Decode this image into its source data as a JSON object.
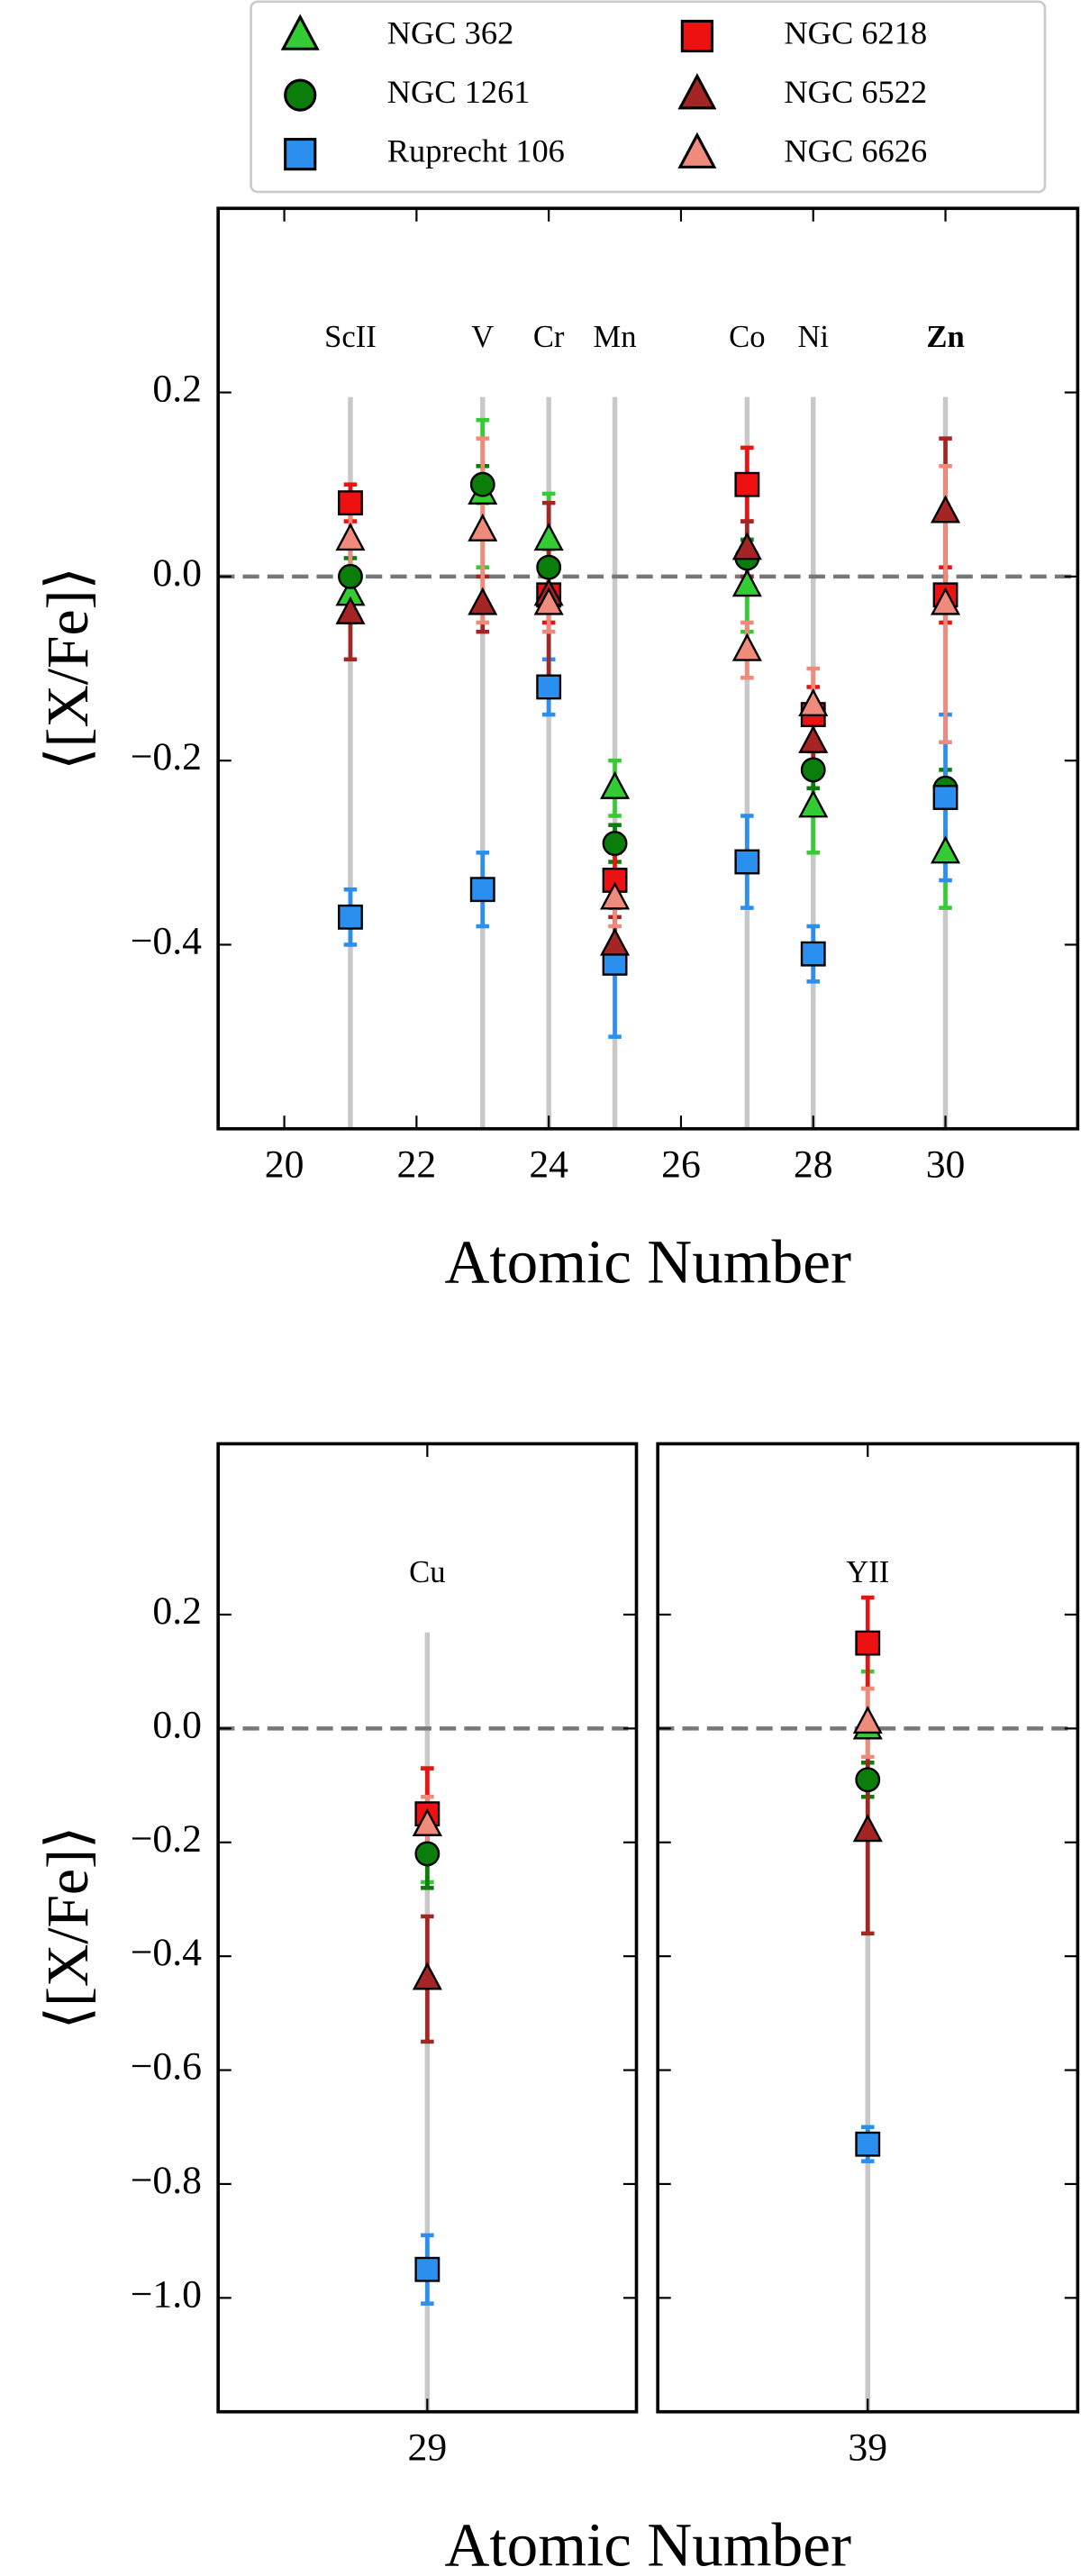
{
  "chart_data": [
    {
      "type": "scatter",
      "xlabel": "Atomic Number",
      "ylabel": "⟨[X/Fe]⟩",
      "xlim": [
        19,
        32
      ],
      "ylim": [
        -0.6,
        0.4
      ],
      "xticks": [
        20,
        22,
        24,
        26,
        28,
        30
      ],
      "yticks": [
        {
          "value": -0.4,
          "label": "−0.4"
        },
        {
          "value": -0.2,
          "label": "−0.2"
        },
        {
          "value": 0,
          "label": "0.0"
        },
        0.2
      ],
      "hline": 0,
      "annotations": [
        {
          "text": "ScII",
          "x": 21
        },
        {
          "text": "V",
          "x": 23
        },
        {
          "text": "Cr",
          "x": 24
        },
        {
          "text": "Mn",
          "x": 25
        },
        {
          "text": "Co",
          "x": 27
        },
        {
          "text": "Ni",
          "x": 28
        },
        {
          "text": "Zn",
          "x": 30,
          "bold": true
        }
      ],
      "x": [
        21,
        23,
        24,
        25,
        27,
        28,
        30
      ],
      "series": [
        {
          "name": "NGC 362",
          "color": "#33cc33",
          "marker": "triangle",
          "values": [
            -0.02,
            0.09,
            0.04,
            -0.23,
            -0.01,
            -0.25,
            -0.3
          ],
          "errors": [
            0.03,
            0.08,
            0.05,
            0.03,
            0.05,
            0.05,
            0.06
          ]
        },
        {
          "name": "NGC 1261",
          "color": "#0a7d0a",
          "marker": "circle",
          "values": [
            0.0,
            0.1,
            0.01,
            -0.29,
            0.02,
            -0.21,
            -0.23
          ],
          "errors": [
            0.02,
            0.02,
            0.02,
            0.02,
            0.02,
            0.02,
            0.02
          ]
        },
        {
          "name": "Ruprecht 106",
          "color": "#2b8fef",
          "marker": "square",
          "values": [
            -0.37,
            -0.34,
            -0.12,
            -0.42,
            -0.31,
            -0.41,
            -0.24
          ],
          "errors": [
            0.03,
            0.04,
            0.03,
            0.08,
            0.05,
            0.03,
            0.09
          ]
        },
        {
          "name": "NGC 6218",
          "color": "#ee1111",
          "marker": "square",
          "values": [
            0.08,
            null,
            -0.02,
            -0.33,
            0.1,
            -0.15,
            -0.02
          ],
          "errors": [
            0.02,
            null,
            0.03,
            0.03,
            0.04,
            0.03,
            0.03
          ]
        },
        {
          "name": "NGC 6522",
          "color": "#a52525",
          "marker": "triangle",
          "values": [
            -0.04,
            -0.03,
            -0.02,
            -0.4,
            0.03,
            -0.18,
            0.07
          ],
          "errors": [
            0.05,
            0.03,
            0.1,
            0.03,
            0.03,
            0.03,
            0.08
          ]
        },
        {
          "name": "NGC 6626",
          "color": "#f08a7a",
          "marker": "triangle",
          "values": [
            0.04,
            0.05,
            -0.03,
            -0.35,
            -0.08,
            -0.14,
            -0.03
          ],
          "errors": [
            0.03,
            0.1,
            0.03,
            0.03,
            0.03,
            0.04,
            0.15
          ]
        }
      ]
    },
    {
      "type": "scatter",
      "xlabel": "Atomic Number",
      "ylabel": "⟨[X/Fe]⟩",
      "xlim": [
        28,
        30
      ],
      "ylim": [
        -1.2,
        0.5
      ],
      "xticks": [
        29
      ],
      "yticks": [
        {
          "value": -1.0,
          "label": "−1.0"
        },
        {
          "value": -0.8,
          "label": "−0.8"
        },
        {
          "value": -0.6,
          "label": "−0.6"
        },
        {
          "value": -0.4,
          "label": "−0.4"
        },
        {
          "value": -0.2,
          "label": "−0.2"
        },
        {
          "value": 0,
          "label": "0.0"
        },
        0.2
      ],
      "hline": 0,
      "annotations": [
        {
          "text": "Cu",
          "x": 29
        }
      ],
      "x": [
        29
      ],
      "series": [
        {
          "color": "#33cc33",
          "marker": "triangle",
          "values": [
            -0.17
          ],
          "errors": [
            0.1
          ]
        },
        {
          "color": "#0a7d0a",
          "marker": "circle",
          "values": [
            -0.22
          ],
          "errors": [
            0.06
          ]
        },
        {
          "color": "#2b8fef",
          "marker": "square",
          "values": [
            -0.95
          ],
          "errors": [
            0.06
          ]
        },
        {
          "color": "#ee1111",
          "marker": "square",
          "values": [
            -0.15
          ],
          "errors": [
            0.08
          ]
        },
        {
          "color": "#a52525",
          "marker": "triangle",
          "values": [
            -0.44
          ],
          "errors": [
            0.11
          ]
        },
        {
          "color": "#f08a7a",
          "marker": "triangle",
          "values": [
            -0.17
          ],
          "errors": [
            0.05
          ]
        }
      ]
    },
    {
      "type": "scatter",
      "xlim": [
        38,
        40
      ],
      "ylim": [
        -1.2,
        0.5
      ],
      "xticks": [
        39
      ],
      "yticks": [
        -1.0,
        -0.8,
        -0.6,
        -0.4,
        -0.2,
        0,
        0.2
      ],
      "hline": 0,
      "annotations": [
        {
          "text": "YII",
          "x": 39
        }
      ],
      "x": [
        39
      ],
      "series": [
        {
          "color": "#33cc33",
          "marker": "triangle",
          "values": [
            0.0
          ],
          "errors": [
            0.1
          ]
        },
        {
          "color": "#0a7d0a",
          "marker": "circle",
          "values": [
            -0.09
          ],
          "errors": [
            0.03
          ]
        },
        {
          "color": "#2b8fef",
          "marker": "square",
          "values": [
            -0.73
          ],
          "errors": [
            0.03
          ]
        },
        {
          "color": "#ee1111",
          "marker": "square",
          "values": [
            0.15
          ],
          "errors": [
            0.08
          ]
        },
        {
          "color": "#a52525",
          "marker": "triangle",
          "values": [
            -0.18
          ],
          "errors": [
            0.18
          ]
        },
        {
          "color": "#f08a7a",
          "marker": "triangle",
          "values": [
            0.01
          ],
          "errors": [
            0.06
          ]
        }
      ]
    }
  ]
}
